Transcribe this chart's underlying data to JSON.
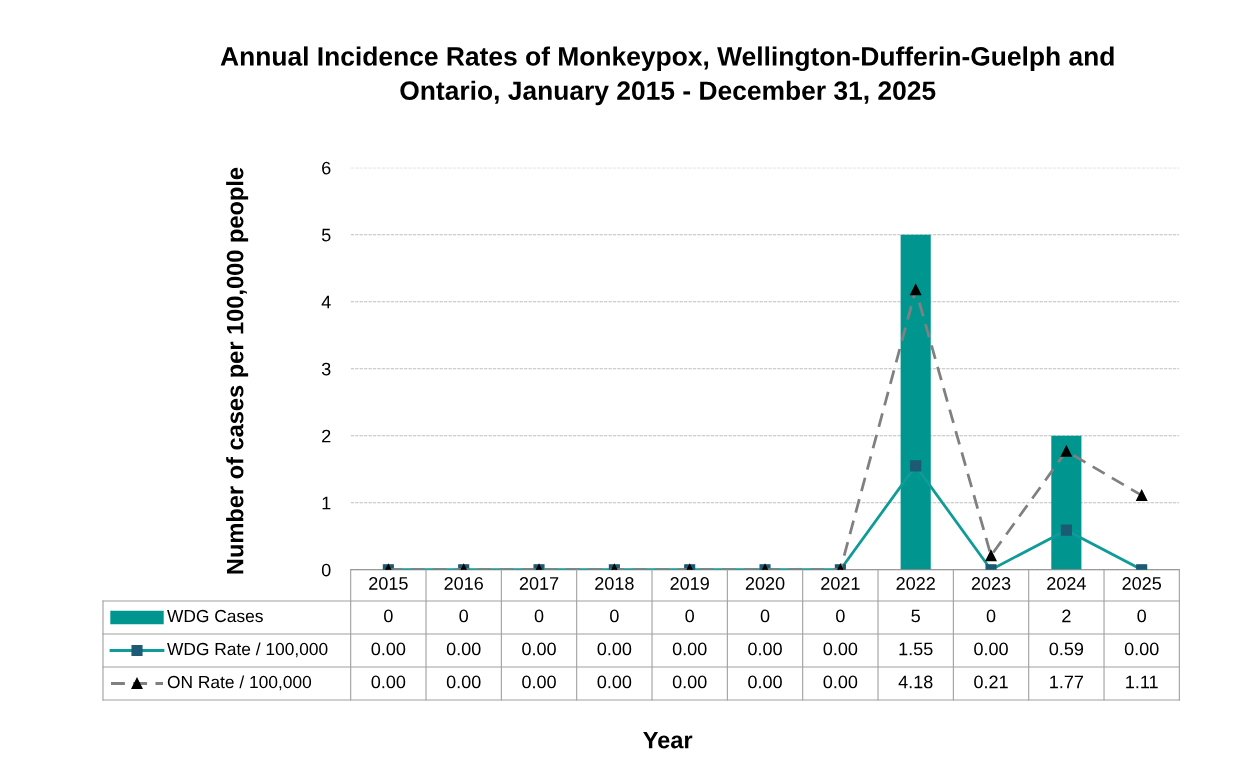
{
  "chart_data": {
    "type": "bar",
    "title": "Annual Incidence Rates of Monkeypox, Wellington-Dufferin-Guelph and\nOntario, January 2015 - December 31, 2025",
    "annotations": [
      "Year"
    ],
    "ylabel": "Number of cases per 100,000 people",
    "categories": [
      "2015",
      "2016",
      "2017",
      "2018",
      "2019",
      "2020",
      "2021",
      "2022",
      "2023",
      "2024",
      "2025"
    ],
    "series": [
      {
        "name": "WDG Cases",
        "color": "#009690",
        "values": [
          0,
          0,
          0,
          0,
          0,
          0,
          0,
          5,
          0,
          2,
          0
        ],
        "value_labels": [
          "0",
          "0",
          "0",
          "0",
          "0",
          "0",
          "0",
          "5",
          "0",
          "2",
          "0"
        ]
      },
      {
        "name": "WDG Rate / 100,000",
        "type": "line",
        "color": "#0f9b98",
        "marker": "square",
        "line_style": "solid",
        "values": [
          0,
          0,
          0,
          0,
          0,
          0,
          0,
          1.55,
          0,
          0.59,
          0
        ],
        "value_labels": [
          "0.00",
          "0.00",
          "0.00",
          "0.00",
          "0.00",
          "0.00",
          "0.00",
          "1.55",
          "0.00",
          "0.59",
          "0.00"
        ]
      },
      {
        "name": "ON Rate / 100,000",
        "type": "line",
        "color": "#808080",
        "marker": "triangle",
        "line_style": "dashed",
        "values": [
          0,
          0,
          0,
          0,
          0,
          0,
          0,
          4.18,
          0.21,
          1.77,
          1.11
        ],
        "value_labels": [
          "0.00",
          "0.00",
          "0.00",
          "0.00",
          "0.00",
          "0.00",
          "0.00",
          "4.18",
          "0.21",
          "1.77",
          "1.11"
        ]
      }
    ],
    "ylim": [
      0,
      6
    ],
    "yticks": [
      0,
      1,
      2,
      3,
      4,
      5,
      6
    ],
    "grid": "y",
    "legend": "bottom"
  }
}
